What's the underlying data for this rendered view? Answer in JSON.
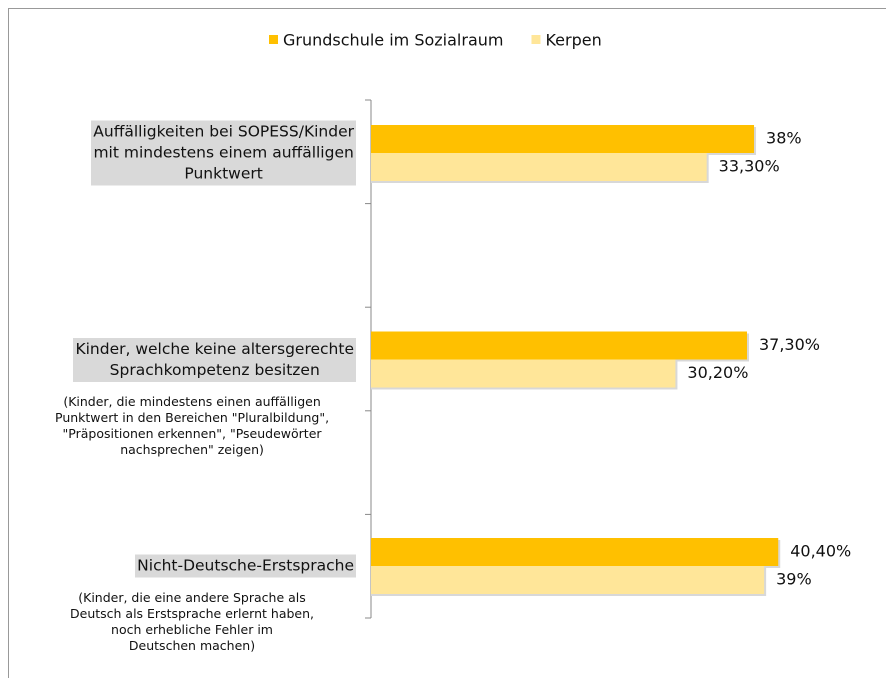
{
  "chart_data": {
    "type": "barh",
    "categories": [
      "Auffälligkeiten bei SOPESS/Kinder\nmit mindestens einem auffälligen\nPunktwert",
      "Kinder, welche keine altersgerechte\nSprachkompetenz besitzen",
      "Nicht-Deutsche-Erstsprache"
    ],
    "notes": [
      "(Kinder, die mindestens einen auffälligen\nPunktwert in den Bereichen \"Pluralbildung\",\n\"Präpositionen erkennen\", \"Pseudewörter\nnachsprechen\" zeigen)",
      "(Kinder, die eine andere Sprache als\nDeutsch als Erstsprache erlernt haben,\nnoch erhebliche Fehler im\nDeutschen machen)"
    ],
    "series": [
      {
        "name": "Grundschule im Sozialraum",
        "color": "#ffc000",
        "values": [
          38,
          37.3,
          40.4
        ],
        "value_labels": [
          "38%",
          "37,30%",
          "40,40%"
        ]
      },
      {
        "name": "Kerpen",
        "color": "#ffe699",
        "values": [
          33.3,
          30.2,
          39
        ],
        "value_labels": [
          "33,30%",
          "30,20%",
          "39%"
        ]
      }
    ],
    "xlim": [
      0,
      50
    ],
    "legend": "top"
  }
}
